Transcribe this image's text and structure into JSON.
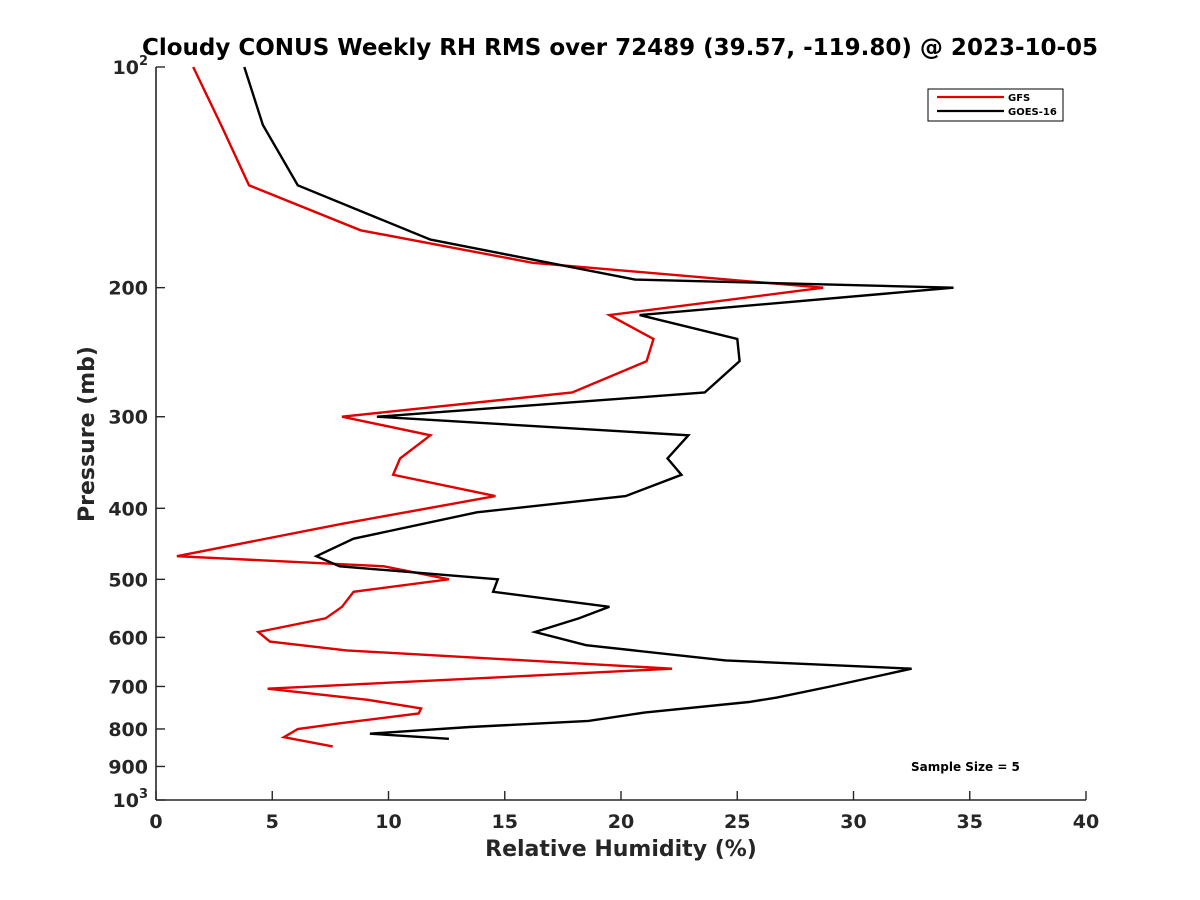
{
  "chart_data": {
    "type": "line",
    "title": "Cloudy CONUS Weekly RH RMS over 72489 (39.57, -119.80) @ 2023-10-05",
    "xlabel": "Relative Humidity (%)",
    "ylabel": "Pressure (mb)",
    "xlim": [
      0,
      40
    ],
    "ylim": [
      100,
      1000
    ],
    "y_scale": "log",
    "y_reversed": true,
    "grid": false,
    "legend_position": "top-right",
    "x_ticks": [
      "0",
      "5",
      "10",
      "15",
      "20",
      "25",
      "30",
      "35",
      "40"
    ],
    "y_ticks": [
      {
        "value": 100,
        "base": "10",
        "exp": "2"
      },
      {
        "value": 200,
        "label": "200"
      },
      {
        "value": 300,
        "label": "300"
      },
      {
        "value": 400,
        "label": "400"
      },
      {
        "value": 500,
        "label": "500"
      },
      {
        "value": 600,
        "label": "600"
      },
      {
        "value": 700,
        "label": "700"
      },
      {
        "value": 800,
        "label": "800"
      },
      {
        "value": 900,
        "label": "900"
      },
      {
        "value": 1000,
        "base": "10",
        "exp": "3"
      }
    ],
    "series": [
      {
        "name": "GFS",
        "color": "#e00000",
        "points": [
          [
            1.6,
            100
          ],
          [
            2.8,
            120
          ],
          [
            4.0,
            145
          ],
          [
            8.8,
            167
          ],
          [
            16.2,
            185
          ],
          [
            28.7,
            200
          ],
          [
            19.5,
            218
          ],
          [
            21.4,
            235
          ],
          [
            21.1,
            252
          ],
          [
            17.9,
            278
          ],
          [
            8.0,
            300
          ],
          [
            11.8,
            318
          ],
          [
            10.5,
            342
          ],
          [
            10.2,
            360
          ],
          [
            14.6,
            385
          ],
          [
            8.0,
            420
          ],
          [
            0.9,
            465
          ],
          [
            9.8,
            480
          ],
          [
            12.6,
            500
          ],
          [
            8.5,
            520
          ],
          [
            8.0,
            545
          ],
          [
            7.3,
            565
          ],
          [
            4.4,
            590
          ],
          [
            4.9,
            608
          ],
          [
            8.2,
            625
          ],
          [
            22.2,
            662
          ],
          [
            4.8,
            705
          ],
          [
            9.1,
            730
          ],
          [
            11.4,
            750
          ],
          [
            11.3,
            762
          ],
          [
            7.9,
            786
          ],
          [
            6.1,
            800
          ],
          [
            5.5,
            821
          ],
          [
            7.6,
            845
          ]
        ]
      },
      {
        "name": "GOES-16",
        "color": "#000000",
        "points": [
          [
            3.8,
            100
          ],
          [
            4.6,
            120
          ],
          [
            6.1,
            145
          ],
          [
            11.8,
            172
          ],
          [
            20.6,
            195
          ],
          [
            34.3,
            200
          ],
          [
            20.8,
            218
          ],
          [
            25.0,
            235
          ],
          [
            25.1,
            252
          ],
          [
            23.6,
            278
          ],
          [
            9.5,
            300
          ],
          [
            22.9,
            318
          ],
          [
            22.0,
            342
          ],
          [
            22.6,
            360
          ],
          [
            20.2,
            385
          ],
          [
            13.8,
            405
          ],
          [
            8.5,
            440
          ],
          [
            6.9,
            465
          ],
          [
            7.9,
            480
          ],
          [
            14.7,
            500
          ],
          [
            14.5,
            520
          ],
          [
            19.5,
            545
          ],
          [
            18.2,
            565
          ],
          [
            16.3,
            590
          ],
          [
            18.5,
            615
          ],
          [
            24.5,
            645
          ],
          [
            32.5,
            662
          ],
          [
            29.0,
            700
          ],
          [
            26.7,
            725
          ],
          [
            25.5,
            735
          ],
          [
            21.0,
            760
          ],
          [
            18.6,
            780
          ],
          [
            13.5,
            795
          ],
          [
            9.2,
            812
          ],
          [
            12.6,
            825
          ]
        ]
      }
    ],
    "annotations": [
      "Sample Size = 5"
    ]
  }
}
